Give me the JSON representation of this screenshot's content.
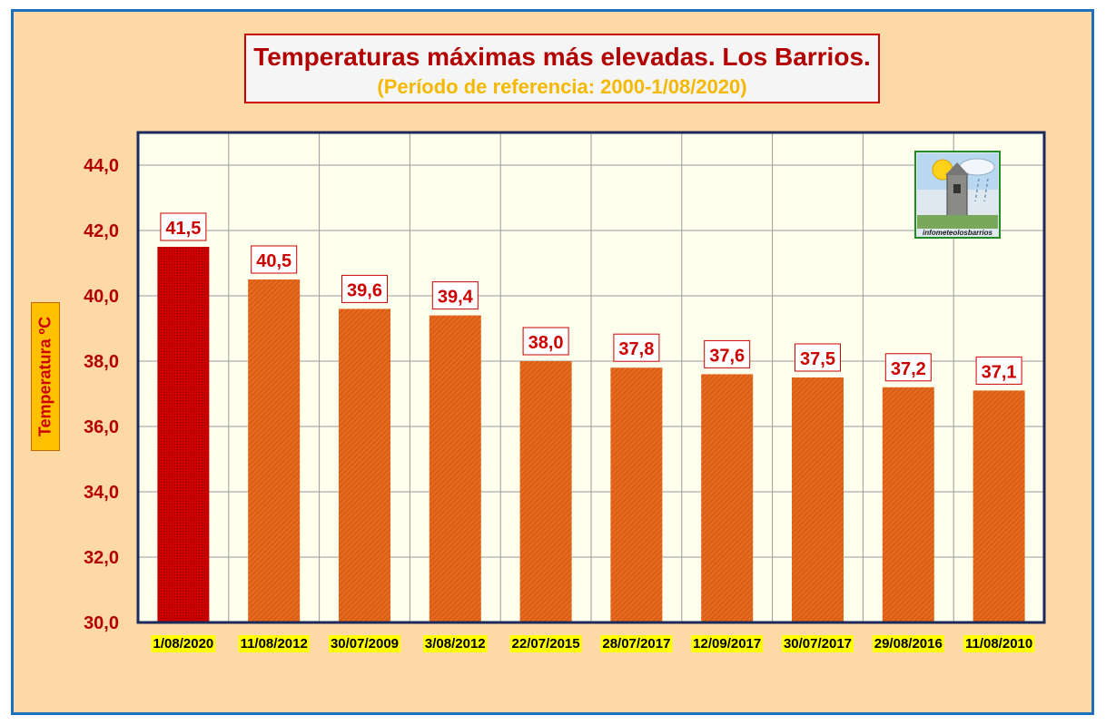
{
  "chart_data": {
    "type": "bar",
    "title": "Temperaturas máximas más elevadas. Los Barrios.",
    "subtitle": "(Período de referencia: 2000-1/08/2020)",
    "ylabel": "Temperatura ºC",
    "xlabel": "",
    "ylim": [
      30,
      45
    ],
    "yticks": [
      "30,0",
      "32,0",
      "34,0",
      "36,0",
      "38,0",
      "40,0",
      "42,0",
      "44,0"
    ],
    "ytick_values": [
      30,
      32,
      34,
      36,
      38,
      40,
      42,
      44
    ],
    "grid": true,
    "categories": [
      "1/08/2020",
      "11/08/2012",
      "30/07/2009",
      "3/08/2012",
      "22/07/2015",
      "28/07/2017",
      "12/09/2017",
      "30/07/2017",
      "29/08/2016",
      "11/08/2010"
    ],
    "values": [
      41.5,
      40.5,
      39.6,
      39.4,
      38.0,
      37.8,
      37.6,
      37.5,
      37.2,
      37.1
    ],
    "value_labels": [
      "41,5",
      "40,5",
      "39,6",
      "39,4",
      "38,0",
      "37,8",
      "37,6",
      "37,5",
      "37,2",
      "37,1"
    ],
    "colors": {
      "highlight_bar": "#cc0000",
      "bar": "#e0601a",
      "plot_background": "#ffffee",
      "grid": "#9a9a9a",
      "axis_border": "#1a2a5a",
      "label_text": "#cc0000",
      "category_highlight": "#ffff00"
    }
  },
  "logo": {
    "text": "infometeolosbarrios",
    "icon": "church-tower-weather-logo"
  }
}
